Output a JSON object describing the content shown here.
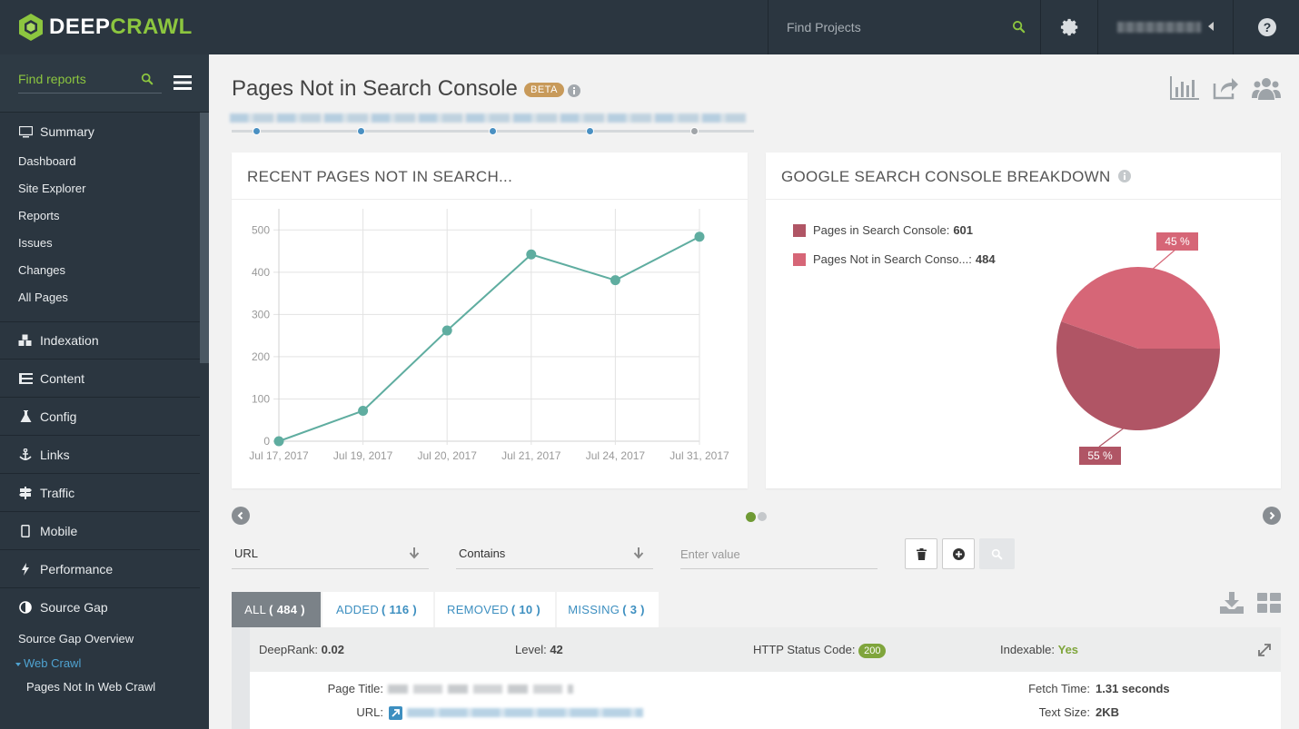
{
  "brand": {
    "name_part1": "DEEP",
    "name_part2": "CRAWL",
    "accent": "#8cc63f"
  },
  "topbar": {
    "search_placeholder": "Find Projects"
  },
  "sidebar": {
    "search_placeholder": "Find reports",
    "summary": {
      "label": "Summary",
      "items": [
        "Dashboard",
        "Site Explorer",
        "Reports",
        "Issues",
        "Changes",
        "All Pages"
      ]
    },
    "sections": [
      "Indexation",
      "Content",
      "Config",
      "Links",
      "Traffic",
      "Mobile",
      "Performance",
      "Source Gap"
    ],
    "source_gap": {
      "overview": "Source Gap Overview",
      "web_crawl": "Web Crawl",
      "pages_not_in": "Pages Not In Web Crawl"
    }
  },
  "page": {
    "title": "Pages Not in Search Console",
    "badge": "BETA"
  },
  "line_card": {
    "title": "RECENT PAGES NOT IN SEARCH..."
  },
  "chart_data": [
    {
      "type": "line",
      "title": "RECENT PAGES NOT IN SEARCH...",
      "categories": [
        "Jul 17, 2017",
        "Jul 19, 2017",
        "Jul 20, 2017",
        "Jul 21, 2017",
        "Jul 24, 2017",
        "Jul 31, 2017"
      ],
      "values": [
        0,
        72,
        262,
        442,
        381,
        484
      ],
      "y_ticks": [
        "0",
        "100",
        "200",
        "300",
        "400",
        "500"
      ],
      "ylim": [
        0,
        550
      ],
      "color": "#5fada0",
      "grid": true
    },
    {
      "type": "pie",
      "title": "GOOGLE SEARCH CONSOLE BREAKDOWN",
      "labels": [
        "Pages in Search Console",
        "Pages Not in Search Conso..."
      ],
      "values": [
        601,
        484
      ],
      "percent_labels": [
        "55 %",
        "45 %"
      ],
      "colors": [
        "#b05565",
        "#d66677"
      ]
    }
  ],
  "pie_card": {
    "title": "GOOGLE SEARCH CONSOLE BREAKDOWN",
    "legend": [
      {
        "label": "Pages in Search Console:",
        "value": "601"
      },
      {
        "label": "Pages Not in Search Conso...:",
        "value": "484"
      }
    ],
    "label_large": "55 %",
    "label_small": "45 %"
  },
  "filters": {
    "field": "URL",
    "operator": "Contains",
    "value_placeholder": "Enter value"
  },
  "tabs": [
    {
      "name": "ALL",
      "count": "( 484 )"
    },
    {
      "name": "ADDED",
      "count": "( 116 )"
    },
    {
      "name": "REMOVED",
      "count": "( 10 )"
    },
    {
      "name": "MISSING",
      "count": "( 3 )"
    }
  ],
  "result": {
    "deeprank_label": "DeepRank:",
    "deeprank_value": "0.02",
    "level_label": "Level:",
    "level_value": "42",
    "status_label": "HTTP Status Code:",
    "status_value": "200",
    "indexable_label": "Indexable:",
    "indexable_value": "Yes",
    "page_title_label": "Page Title:",
    "url_label": "URL:",
    "fetch_label": "Fetch Time:",
    "fetch_value": "1.31 seconds",
    "size_label": "Text Size:",
    "size_value": "2KB"
  }
}
